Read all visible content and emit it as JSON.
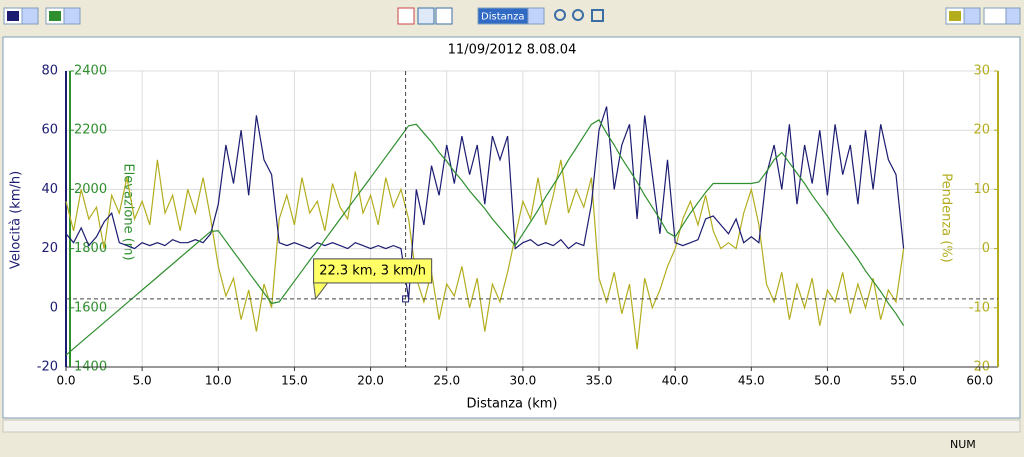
{
  "toolbar": {
    "x_axis_select": "Distanza"
  },
  "status_bar": {
    "indicator": "NUM"
  },
  "chart_data": {
    "type": "line",
    "title": "11/09/2012 8.08.04",
    "x_label": "Distanza (km)",
    "y_label": "Velocità (km/h)",
    "y2_label": "Elevazione (m)",
    "y3_label": "Pendenza (%)",
    "xlim": [
      0,
      61.2
    ],
    "xticks": [
      {
        "value": 0,
        "label": "0.0"
      },
      {
        "value": 5,
        "label": "5.0"
      },
      {
        "value": 10,
        "label": "10.0"
      },
      {
        "value": 15,
        "label": "15.0"
      },
      {
        "value": 20,
        "label": "20.0"
      },
      {
        "value": 25,
        "label": "25.0"
      },
      {
        "value": 30,
        "label": "30.0"
      },
      {
        "value": 35,
        "label": "35.0"
      },
      {
        "value": 40,
        "label": "40.0"
      },
      {
        "value": 45,
        "label": "45.0"
      },
      {
        "value": 50,
        "label": "50.0"
      },
      {
        "value": 55,
        "label": "55.0"
      },
      {
        "value": 60,
        "label": "60.0"
      }
    ],
    "ylim": [
      -20,
      80
    ],
    "yticks": [
      -20,
      0,
      20,
      40,
      60,
      80
    ],
    "y2lim": [
      1400,
      2400
    ],
    "y2ticks": [
      1400,
      1600,
      1800,
      2000,
      2200,
      2400
    ],
    "y3lim": [
      -20,
      30
    ],
    "y3ticks": [
      -20,
      -10,
      0,
      10,
      20,
      30
    ],
    "grid": true,
    "x": [
      0,
      0.5,
      1,
      1.5,
      2,
      2.5,
      3,
      3.5,
      4,
      4.5,
      5,
      5.5,
      6,
      6.5,
      7,
      7.5,
      8,
      8.5,
      9,
      9.5,
      10,
      10.5,
      11,
      11.5,
      12,
      12.5,
      13,
      13.5,
      14,
      14.5,
      15,
      15.5,
      16,
      16.5,
      17,
      17.5,
      18,
      18.5,
      19,
      19.5,
      20,
      20.5,
      21,
      21.5,
      22,
      22.5,
      23,
      23.5,
      24,
      24.5,
      25,
      25.5,
      26,
      26.5,
      27,
      27.5,
      28,
      28.5,
      29,
      29.5,
      30,
      30.5,
      31,
      31.5,
      32,
      32.5,
      33,
      33.5,
      34,
      34.5,
      35,
      35.5,
      36,
      36.5,
      37,
      37.5,
      38,
      38.5,
      39,
      39.5,
      40,
      40.5,
      41,
      41.5,
      42,
      42.5,
      43,
      43.5,
      44,
      44.5,
      45,
      45.5,
      46,
      46.5,
      47,
      47.5,
      48,
      48.5,
      49,
      49.5,
      50,
      50.5,
      51,
      51.5,
      52,
      52.5,
      53,
      53.5,
      54,
      54.5,
      55
    ],
    "series": [
      {
        "name": "Velocità",
        "color": "#1c1c72",
        "axis": "y",
        "values": [
          25,
          22,
          27,
          21,
          24,
          29,
          32,
          22,
          21,
          20,
          22,
          21,
          22,
          21,
          23,
          22,
          22,
          23,
          22,
          25,
          35,
          55,
          42,
          60,
          38,
          65,
          50,
          45,
          22,
          21,
          22,
          21,
          20,
          22,
          21,
          22,
          21,
          20,
          22,
          21,
          20,
          21,
          20,
          21,
          20,
          3,
          40,
          28,
          48,
          38,
          55,
          42,
          58,
          45,
          55,
          35,
          58,
          50,
          58,
          20,
          22,
          23,
          21,
          22,
          21,
          23,
          20,
          22,
          21,
          35,
          60,
          68,
          40,
          55,
          62,
          30,
          65,
          45,
          25,
          50,
          22,
          21,
          22,
          23,
          30,
          31,
          28,
          25,
          30,
          22,
          24,
          22,
          45,
          55,
          40,
          62,
          35,
          55,
          42,
          60,
          38,
          62,
          45,
          55,
          35,
          60,
          40,
          62,
          50,
          45,
          20
        ]
      },
      {
        "name": "Elevazione",
        "color": "#2f8f2f",
        "axis": "y2",
        "values": [
          1440,
          1462,
          1484,
          1506,
          1528,
          1550,
          1572,
          1594,
          1616,
          1638,
          1660,
          1682,
          1704,
          1726,
          1748,
          1770,
          1792,
          1814,
          1836,
          1858,
          1860,
          1825,
          1790,
          1755,
          1720,
          1685,
          1650,
          1615,
          1620,
          1655,
          1690,
          1725,
          1760,
          1795,
          1830,
          1865,
          1900,
          1935,
          1970,
          2005,
          2040,
          2075,
          2110,
          2145,
          2180,
          2215,
          2220,
          2190,
          2160,
          2125,
          2095,
          2060,
          2030,
          1995,
          1965,
          1935,
          1900,
          1870,
          1840,
          1810,
          1850,
          1890,
          1930,
          1975,
          2015,
          2055,
          2100,
          2140,
          2180,
          2220,
          2235,
          2190,
          2150,
          2105,
          2065,
          2025,
          1980,
          1940,
          1900,
          1855,
          1840,
          1880,
          1920,
          1955,
          1990,
          2020,
          2020,
          2020,
          2020,
          2020,
          2020,
          2025,
          2060,
          2100,
          2125,
          2090,
          2055,
          2020,
          1980,
          1945,
          1910,
          1870,
          1835,
          1800,
          1765,
          1725,
          1690,
          1655,
          1615,
          1580,
          1540
        ]
      },
      {
        "name": "Pendenza",
        "color": "#b3ad1e",
        "axis": "y3",
        "values": [
          8,
          3,
          10,
          5,
          7,
          0,
          9,
          6,
          12,
          5,
          8,
          4,
          15,
          6,
          9,
          3,
          10,
          6,
          12,
          5,
          -3,
          -8,
          -5,
          -12,
          -7,
          -14,
          -6,
          -10,
          5,
          9,
          4,
          12,
          6,
          8,
          3,
          11,
          7,
          5,
          13,
          6,
          9,
          4,
          12,
          7,
          10,
          5,
          -5,
          -9,
          -4,
          -12,
          -6,
          -8,
          -3,
          -10,
          -5,
          -14,
          -6,
          -9,
          -4,
          2,
          8,
          5,
          12,
          4,
          9,
          15,
          6,
          10,
          7,
          12,
          -5,
          -9,
          -4,
          -11,
          -6,
          -17,
          -5,
          -10,
          -7,
          -3,
          0,
          5,
          8,
          4,
          9,
          3,
          0,
          1,
          0,
          6,
          10,
          4,
          -6,
          -9,
          -4,
          -12,
          -6,
          -10,
          -5,
          -13,
          -7,
          -9,
          -4,
          -11,
          -6,
          -10,
          -5,
          -12,
          -7,
          -9,
          0
        ]
      }
    ],
    "annotation": {
      "text": "22.3 km, 3 km/h",
      "x": 22.3,
      "y": 3
    }
  }
}
